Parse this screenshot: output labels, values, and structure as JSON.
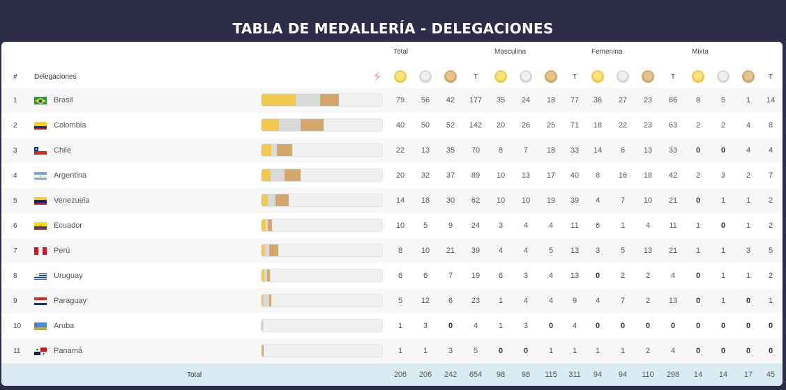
{
  "title": "TABLA DE MEDALLERÍA - DELEGACIONES",
  "groups": [
    "Total",
    "Masculina",
    "Femenina",
    "Mixta"
  ],
  "headers": {
    "rank": "#",
    "delegation": "Delegaciones",
    "total_col": "T"
  },
  "icons": {
    "logo": "panam-sports-logo-icon",
    "gold": "gold-medal-icon",
    "silver": "silver-medal-icon",
    "bronze": "bronze-medal-icon"
  },
  "colors": {
    "gold": "#f2c94c",
    "silver": "#d9d9d9",
    "bronze": "#d4a86a",
    "header_bg": "#2d2d4a",
    "total_bg": "#d9ebf3"
  },
  "rows": [
    {
      "rank": "1",
      "country": "Brasil",
      "flag": "br",
      "values": [
        "79",
        "56",
        "42",
        "177",
        "35",
        "24",
        "18",
        "77",
        "36",
        "27",
        "23",
        "86",
        "8",
        "5",
        "1",
        "14"
      ]
    },
    {
      "rank": "2",
      "country": "Colombia",
      "flag": "co",
      "values": [
        "40",
        "50",
        "52",
        "142",
        "20",
        "26",
        "25",
        "71",
        "18",
        "22",
        "23",
        "63",
        "2",
        "2",
        "4",
        "8"
      ]
    },
    {
      "rank": "3",
      "country": "Chile",
      "flag": "cl",
      "values": [
        "22",
        "13",
        "35",
        "70",
        "8",
        "7",
        "18",
        "33",
        "14",
        "6",
        "13",
        "33",
        "0",
        "0",
        "4",
        "4"
      ]
    },
    {
      "rank": "4",
      "country": "Argentina",
      "flag": "ar",
      "values": [
        "20",
        "32",
        "37",
        "89",
        "10",
        "13",
        "17",
        "40",
        "8",
        "16",
        "18",
        "42",
        "2",
        "3",
        "2",
        "7"
      ]
    },
    {
      "rank": "5",
      "country": "Venezuela",
      "flag": "ve",
      "values": [
        "14",
        "18",
        "30",
        "62",
        "10",
        "10",
        "19",
        "39",
        "4",
        "7",
        "10",
        "21",
        "0",
        "1",
        "1",
        "2"
      ]
    },
    {
      "rank": "6",
      "country": "Ecuador",
      "flag": "ec",
      "values": [
        "10",
        "5",
        "9",
        "24",
        "3",
        "4",
        "4",
        "11",
        "6",
        "1",
        "4",
        "11",
        "1",
        "0",
        "1",
        "2"
      ]
    },
    {
      "rank": "7",
      "country": "Perú",
      "flag": "pe",
      "values": [
        "8",
        "10",
        "21",
        "39",
        "4",
        "4",
        "5",
        "13",
        "3",
        "5",
        "13",
        "21",
        "1",
        "1",
        "3",
        "5"
      ]
    },
    {
      "rank": "8",
      "country": "Uruguay",
      "flag": "uy",
      "values": [
        "6",
        "6",
        "7",
        "19",
        "6",
        "3",
        "4",
        "13",
        "0",
        "2",
        "2",
        "4",
        "0",
        "1",
        "1",
        "2"
      ]
    },
    {
      "rank": "9",
      "country": "Paraguay",
      "flag": "py",
      "values": [
        "5",
        "12",
        "6",
        "23",
        "1",
        "4",
        "4",
        "9",
        "4",
        "7",
        "2",
        "13",
        "0",
        "1",
        "0",
        "1"
      ]
    },
    {
      "rank": "10",
      "country": "Aruba",
      "flag": "aw",
      "values": [
        "1",
        "3",
        "0",
        "4",
        "1",
        "3",
        "0",
        "4",
        "0",
        "0",
        "0",
        "0",
        "0",
        "0",
        "0",
        "0"
      ]
    },
    {
      "rank": "11",
      "country": "Panamá",
      "flag": "pa",
      "values": [
        "1",
        "1",
        "3",
        "5",
        "0",
        "0",
        "1",
        "1",
        "1",
        "1",
        "2",
        "4",
        "0",
        "0",
        "0",
        "0"
      ]
    }
  ],
  "total": {
    "label": "Total",
    "values": [
      "206",
      "206",
      "242",
      "654",
      "98",
      "98",
      "115",
      "311",
      "94",
      "94",
      "110",
      "298",
      "14",
      "14",
      "17",
      "45"
    ]
  }
}
